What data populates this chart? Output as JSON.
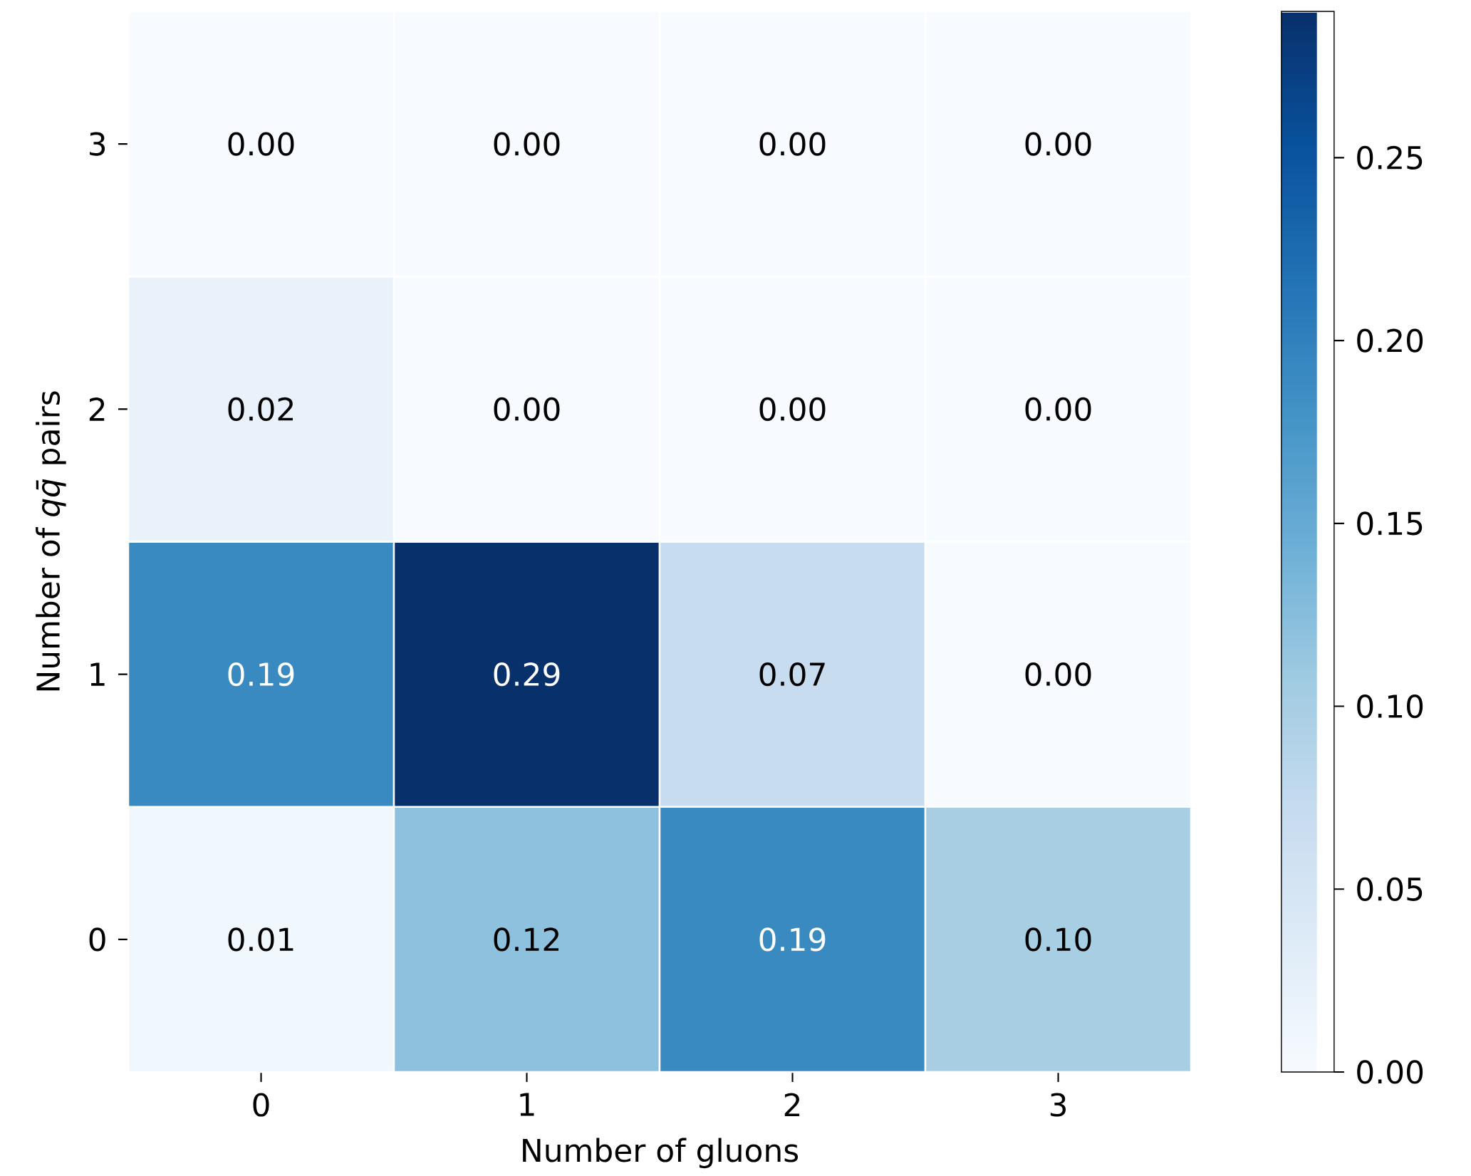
{
  "chart_data": {
    "type": "heatmap",
    "xlabel": "Number of gluons",
    "ylabel": "Number of *qq̄* pairs",
    "categories": [
      "0",
      "1",
      "2",
      "3"
    ],
    "y_categories": [
      "3",
      "2",
      "1",
      "0"
    ],
    "cells": [
      [
        0,
        0,
        0,
        0
      ],
      [
        0.02,
        0,
        0,
        0
      ],
      [
        0.19,
        0.29,
        0.07,
        0
      ],
      [
        0.01,
        0.12,
        0.19,
        0.1
      ]
    ],
    "cell_labels": [
      [
        "0.00",
        "0.00",
        "0.00",
        "0.00"
      ],
      [
        "0.02",
        "0.00",
        "0.00",
        "0.00"
      ],
      [
        "0.19",
        "0.29",
        "0.07",
        "0.00"
      ],
      [
        "0.01",
        "0.12",
        "0.19",
        "0.10"
      ]
    ],
    "clim": [
      0,
      0.29
    ],
    "cticks": [
      {
        "value": 0,
        "label": "0.00"
      },
      {
        "value": 0.05,
        "label": "0.05"
      },
      {
        "value": 0.1,
        "label": "0.10"
      },
      {
        "value": 0.15,
        "label": "0.15"
      },
      {
        "value": 0.2,
        "label": "0.20"
      },
      {
        "value": 0.25,
        "label": "0.25"
      }
    ]
  }
}
